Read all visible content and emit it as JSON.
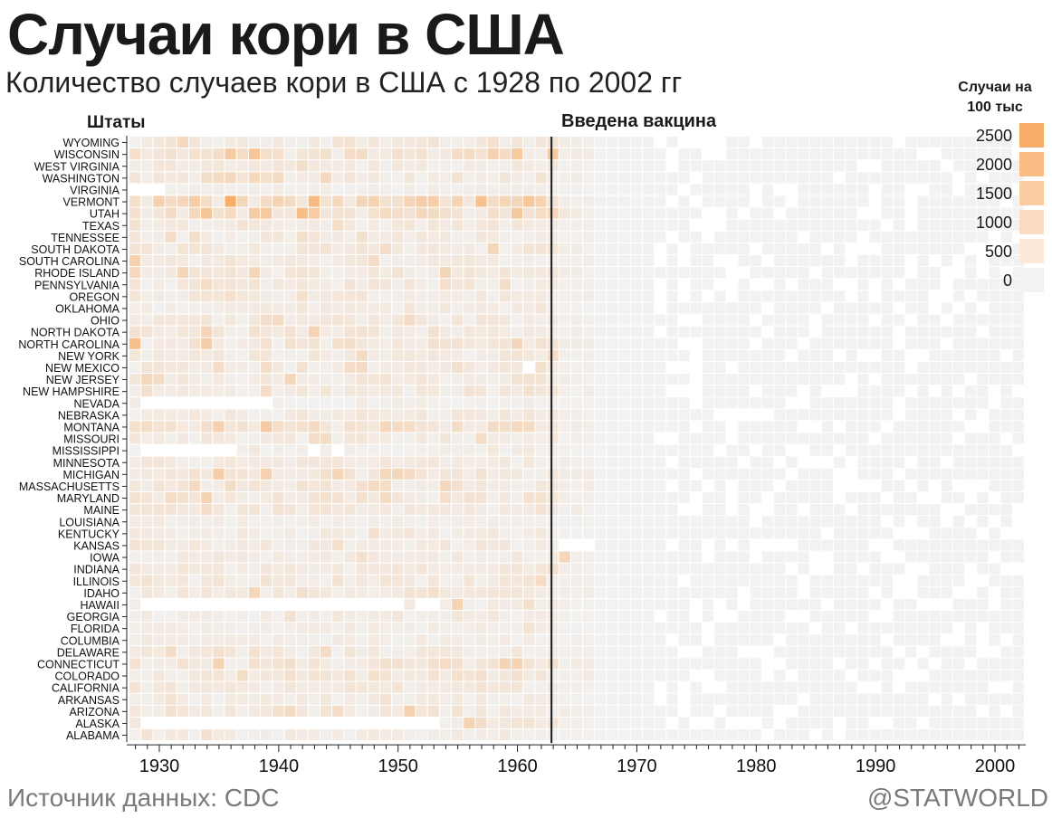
{
  "title": "Случаи кори в США",
  "subtitle": "Количество случаев кори в США с 1928 по 2002 гг",
  "source": "Источник данных: CDC",
  "brand": "@STATWORLD",
  "annotations": {
    "states_label": "Штаты",
    "vaccine_label": "Введена вакцина"
  },
  "legend": {
    "title_line1": "Случаи на",
    "title_line2": "100 тыс",
    "items": [
      {
        "label": "2500",
        "color": "#f8ad66"
      },
      {
        "label": "2000",
        "color": "#f9bd84"
      },
      {
        "label": "1500",
        "color": "#fbcda3"
      },
      {
        "label": "1000",
        "color": "#fcdcc0"
      },
      {
        "label": "500",
        "color": "#fde9da"
      },
      {
        "label": "0",
        "color": "#f2f2f2"
      }
    ]
  },
  "chart_data": {
    "type": "heatmap",
    "title": "Случаи кори в США",
    "subtitle": "Количество случаев кори в США с 1928 по 2002 гг",
    "xlabel": "",
    "ylabel": "Штаты",
    "year_start": 1928,
    "year_end": 2002,
    "x_ticks": [
      1930,
      1940,
      1950,
      1960,
      1970,
      1980,
      1990,
      2000
    ],
    "vaccine_year": 1963,
    "vaccine_label": "Введена вакцина",
    "color_scale": {
      "min": 0,
      "max": 2500,
      "low_color": "#f2f2f2",
      "high_color": "#f8ad66",
      "unit": "Случаи на 100 тыс"
    },
    "missing_color": "#ffffff",
    "states": [
      "WYOMING",
      "WISCONSIN",
      "WEST VIRGINIA",
      "WASHINGTON",
      "VIRGINIA",
      "VERMONT",
      "UTAH",
      "TEXAS",
      "TENNESSEE",
      "SOUTH DAKOTA",
      "SOUTH CAROLINA",
      "RHODE ISLAND",
      "PENNSYLVANIA",
      "OREGON",
      "OKLAHOMA",
      "OHIO",
      "NORTH DAKOTA",
      "NORTH CAROLINA",
      "NEW YORK",
      "NEW MEXICO",
      "NEW JERSEY",
      "NEW HAMPSHIRE",
      "NEVADA",
      "NEBRASKA",
      "MONTANA",
      "MISSOURI",
      "MISSISSIPPI",
      "MINNESOTA",
      "MICHIGAN",
      "MASSACHUSETTS",
      "MARYLAND",
      "MAINE",
      "LOUISIANA",
      "KENTUCKY",
      "KANSAS",
      "IOWA",
      "INDIANA",
      "ILLINOIS",
      "IDAHO",
      "HAWAII",
      "GEORGIA",
      "FLORIDA",
      "COLUMBIA",
      "DELAWARE",
      "CONNECTICUT",
      "COLORADO",
      "CALIFORNIA",
      "ARKANSAS",
      "ARIZONA",
      "ALASKA",
      "ALABAMA"
    ],
    "state_base": [
      350,
      560,
      320,
      360,
      150,
      900,
      650,
      300,
      300,
      380,
      300,
      400,
      340,
      360,
      250,
      330,
      420,
      420,
      350,
      340,
      380,
      330,
      150,
      320,
      620,
      300,
      150,
      300,
      420,
      440,
      440,
      360,
      200,
      260,
      330,
      280,
      330,
      380,
      360,
      250,
      220,
      200,
      220,
      320,
      440,
      450,
      350,
      250,
      380,
      350,
      250
    ],
    "missing_ranges": [
      {
        "state": "VIRGINIA",
        "from": 1928,
        "to": 1930
      },
      {
        "state": "NEVADA",
        "from": 1929,
        "to": 1939
      },
      {
        "state": "MISSISSIPPI",
        "from": 1929,
        "to": 1936
      },
      {
        "state": "MISSISSIPPI",
        "from": 1943,
        "to": 1943
      },
      {
        "state": "MISSISSIPPI",
        "from": 1945,
        "to": 1945
      },
      {
        "state": "HAWAII",
        "from": 1929,
        "to": 1950
      },
      {
        "state": "HAWAII",
        "from": 1952,
        "to": 1953
      },
      {
        "state": "ALASKA",
        "from": 1929,
        "to": 1953
      },
      {
        "state": "KANSAS",
        "from": 1964,
        "to": 1966
      },
      {
        "state": "NEW MEXICO",
        "from": 1961,
        "to": 1961
      }
    ],
    "peaks": [
      {
        "state": "VERMONT",
        "year": 1936,
        "value": 2450
      },
      {
        "state": "VERMONT",
        "year": 1943,
        "value": 2000
      },
      {
        "state": "UTAH",
        "year": 1942,
        "value": 1900
      },
      {
        "state": "UTAH",
        "year": 1934,
        "value": 1600
      },
      {
        "state": "UTAH",
        "year": 1939,
        "value": 1500
      },
      {
        "state": "WISCONSIN",
        "year": 1938,
        "value": 1600
      },
      {
        "state": "WISCONSIN",
        "year": 1958,
        "value": 1200
      },
      {
        "state": "WISCONSIN",
        "year": 1963,
        "value": 1400
      },
      {
        "state": "SOUTH CAROLINA",
        "year": 1928,
        "value": 1200
      },
      {
        "state": "NORTH CAROLINA",
        "year": 1928,
        "value": 1800
      },
      {
        "state": "NORTH CAROLINA",
        "year": 1934,
        "value": 1300
      },
      {
        "state": "MONTANA",
        "year": 1939,
        "value": 1400
      },
      {
        "state": "MONTANA",
        "year": 1935,
        "value": 1200
      },
      {
        "state": "MICHIGAN",
        "year": 1935,
        "value": 1300
      },
      {
        "state": "MICHIGAN",
        "year": 1939,
        "value": 1200
      },
      {
        "state": "ARIZONA",
        "year": 1951,
        "value": 1200
      },
      {
        "state": "ALASKA",
        "year": 1956,
        "value": 1100
      },
      {
        "state": "HAWAII",
        "year": 1955,
        "value": 1100
      },
      {
        "state": "CONNECTICUT",
        "year": 1935,
        "value": 1100
      },
      {
        "state": "MARYLAND",
        "year": 1934,
        "value": 1100
      },
      {
        "state": "RHODE ISLAND",
        "year": 1932,
        "value": 1000
      },
      {
        "state": "IDAHO",
        "year": 1938,
        "value": 1000
      },
      {
        "state": "IOWA",
        "year": 1964,
        "value": 1000
      }
    ]
  }
}
